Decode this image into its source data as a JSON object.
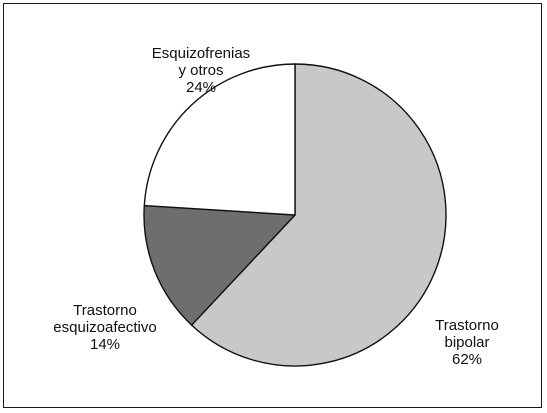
{
  "chart_data": {
    "type": "pie",
    "title": "",
    "slices": [
      {
        "label": [
          "Esquizofrenias",
          "y otros"
        ],
        "percent_label": "24%",
        "value": 24,
        "color": "#ffffff"
      },
      {
        "label": [
          "Trastorno",
          "bipolar"
        ],
        "percent_label": "62%",
        "value": 62,
        "color": "#c8c8c8"
      },
      {
        "label": [
          "Trastorno",
          "esquizoafectivo"
        ],
        "percent_label": "14%",
        "value": 14,
        "color": "#6e6e6e"
      }
    ],
    "slice_order": "counter-clockwise from top: Esquizofrenias y otros, then clockwise from top: Trastorno bipolar, Trastorno esquizoafectivo",
    "legend": "none"
  }
}
